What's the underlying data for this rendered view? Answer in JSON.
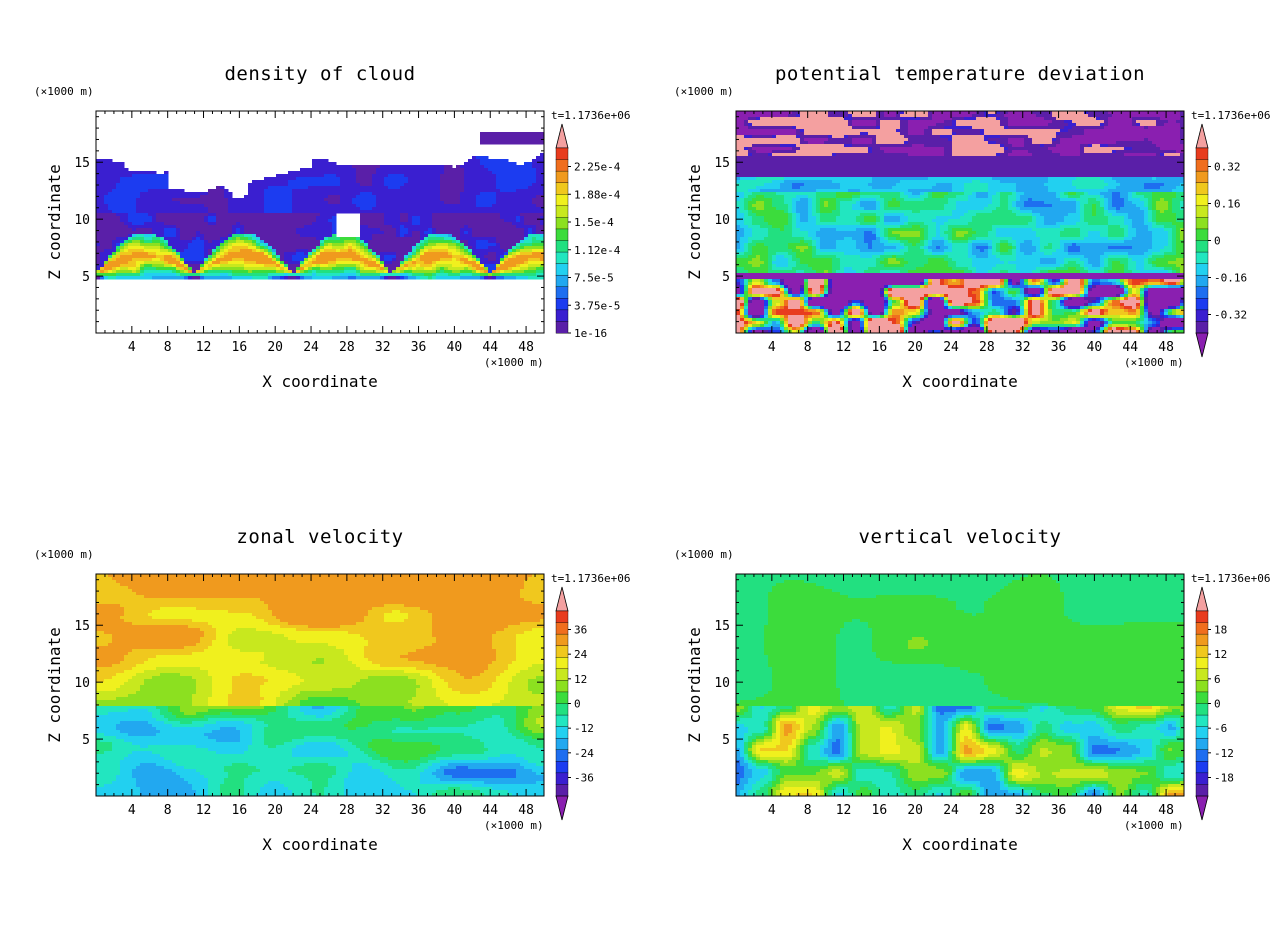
{
  "figure": {
    "time_label": "t=1.1736e+06",
    "unit_label": "(×1000 m)"
  },
  "chart_data": [
    {
      "type": "heatmap",
      "title": "density of cloud",
      "xlabel": "X coordinate",
      "ylabel": "Z coordinate",
      "x_unit": "(×1000 m)",
      "y_unit": "(×1000 m)",
      "annotation": "t=1.1736e+06",
      "xlim": [
        0,
        50
      ],
      "ylim": [
        0,
        19.5
      ],
      "xticks": [
        4,
        8,
        12,
        16,
        20,
        24,
        28,
        32,
        36,
        40,
        44,
        48
      ],
      "yticks": [
        5,
        10,
        15
      ],
      "colorbar": {
        "labels": [
          "2.25e-4",
          "1.88e-4",
          "1.5e-4",
          "1.12e-4",
          "7.5e-5",
          "3.75e-5",
          "1e-16"
        ],
        "min_triangle": false,
        "colors": [
          "#5a1fa8",
          "#3a1fd0",
          "#1c3cf0",
          "#1e6ef0",
          "#22a8f0",
          "#22d0f0",
          "#22e6c0",
          "#22e080",
          "#3cdc3c",
          "#8ce020",
          "#c8e81e",
          "#f0f01e",
          "#f0c81e",
          "#f09a1e",
          "#f06e1e",
          "#e83c1e",
          "#f4a0a0"
        ]
      }
    },
    {
      "type": "heatmap",
      "title": "potential temperature deviation",
      "xlabel": "X coordinate",
      "ylabel": "Z coordinate",
      "x_unit": "(×1000 m)",
      "y_unit": "(×1000 m)",
      "annotation": "t=1.1736e+06",
      "xlim": [
        0,
        50
      ],
      "ylim": [
        0,
        19.5
      ],
      "xticks": [
        4,
        8,
        12,
        16,
        20,
        24,
        28,
        32,
        36,
        40,
        44,
        48
      ],
      "yticks": [
        5,
        10,
        15
      ],
      "colorbar": {
        "labels": [
          "0.32",
          "0.16",
          "0",
          "-0.16",
          "-0.32"
        ],
        "min_triangle": true,
        "colors": [
          "#8a1fb0",
          "#5a1fa8",
          "#3a1fd0",
          "#1c3cf0",
          "#1e6ef0",
          "#22a8f0",
          "#22d0f0",
          "#22e6c0",
          "#22e080",
          "#3cdc3c",
          "#8ce020",
          "#c8e81e",
          "#f0f01e",
          "#f0c81e",
          "#f09a1e",
          "#f06e1e",
          "#e83c1e",
          "#f4a0a0"
        ]
      }
    },
    {
      "type": "heatmap",
      "title": "zonal velocity",
      "xlabel": "X coordinate",
      "ylabel": "Z coordinate",
      "x_unit": "(×1000 m)",
      "y_unit": "(×1000 m)",
      "annotation": "t=1.1736e+06",
      "xlim": [
        0,
        50
      ],
      "ylim": [
        0,
        19.5
      ],
      "xticks": [
        4,
        8,
        12,
        16,
        20,
        24,
        28,
        32,
        36,
        40,
        44,
        48
      ],
      "yticks": [
        5,
        10,
        15
      ],
      "colorbar": {
        "labels": [
          "36",
          "24",
          "12",
          "0",
          "-12",
          "-24",
          "-36"
        ],
        "min_triangle": true,
        "colors": [
          "#8a1fb0",
          "#5a1fa8",
          "#3a1fd0",
          "#1c3cf0",
          "#1e6ef0",
          "#22a8f0",
          "#22d0f0",
          "#22e6c0",
          "#22e080",
          "#3cdc3c",
          "#8ce020",
          "#c8e81e",
          "#f0f01e",
          "#f0c81e",
          "#f09a1e",
          "#f06e1e",
          "#e83c1e",
          "#f4a0a0"
        ]
      }
    },
    {
      "type": "heatmap",
      "title": "vertical velocity",
      "xlabel": "X coordinate",
      "ylabel": "Z coordinate",
      "x_unit": "(×1000 m)",
      "y_unit": "(×1000 m)",
      "annotation": "t=1.1736e+06",
      "xlim": [
        0,
        50
      ],
      "ylim": [
        0,
        19.5
      ],
      "xticks": [
        4,
        8,
        12,
        16,
        20,
        24,
        28,
        32,
        36,
        40,
        44,
        48
      ],
      "yticks": [
        5,
        10,
        15
      ],
      "colorbar": {
        "labels": [
          "18",
          "12",
          "6",
          "0",
          "-6",
          "-12",
          "-18"
        ],
        "min_triangle": true,
        "colors": [
          "#8a1fb0",
          "#5a1fa8",
          "#3a1fd0",
          "#1c3cf0",
          "#1e6ef0",
          "#22a8f0",
          "#22d0f0",
          "#22e6c0",
          "#22e080",
          "#3cdc3c",
          "#8ce020",
          "#c8e81e",
          "#f0f01e",
          "#f0c81e",
          "#f09a1e",
          "#f06e1e",
          "#e83c1e",
          "#f4a0a0"
        ]
      }
    }
  ]
}
